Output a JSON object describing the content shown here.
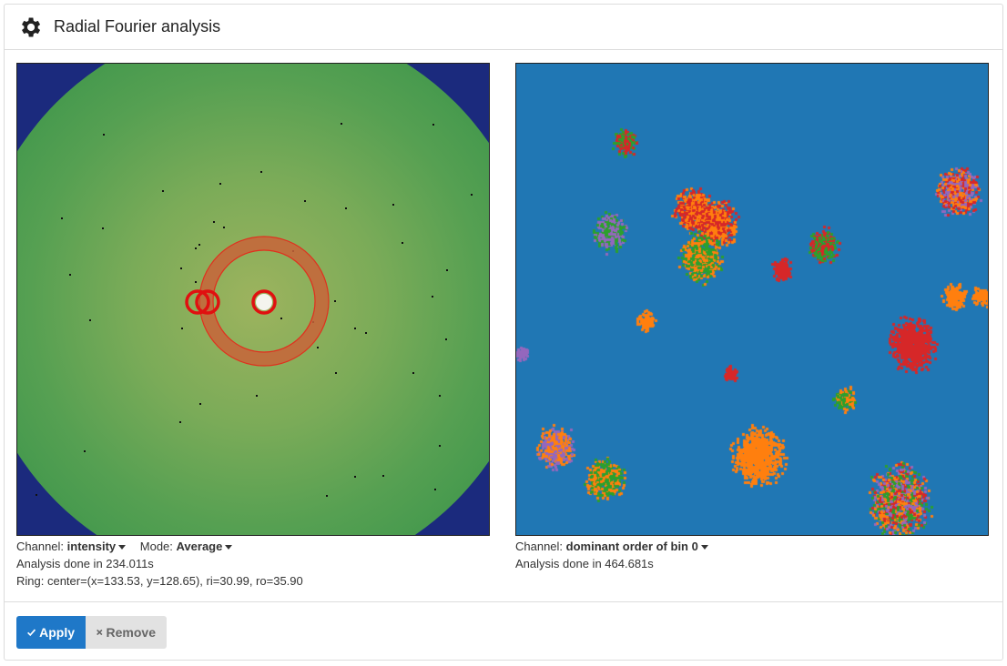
{
  "panel": {
    "title": "Radial Fourier analysis",
    "icon": "gear-icon"
  },
  "left_view": {
    "channel_label": "Channel:",
    "channel_value": "intensity",
    "mode_label": "Mode:",
    "mode_value": "Average",
    "status": "Analysis done in 234.011s",
    "ring_info": "Ring: center=(x=133.53, y=128.65), ri=30.99, ro=35.90"
  },
  "right_view": {
    "channel_label": "Channel:",
    "channel_value": "dominant order of bin 0",
    "status": "Analysis done in 464.681s"
  },
  "footer": {
    "apply_label": "Apply",
    "remove_label": "Remove"
  },
  "colors": {
    "accent": "#1f78c8",
    "heatmap_green": "#4a9c4e",
    "heatmap_center": "#8fb05a",
    "heatmap_corner": "#1a2a7a",
    "ring_red": "#e0301e",
    "map_background": "#2077b4",
    "cluster_orange": "#ff7f0e",
    "cluster_red": "#d62728",
    "cluster_green": "#2ca02c",
    "cluster_purple": "#9467bd"
  }
}
